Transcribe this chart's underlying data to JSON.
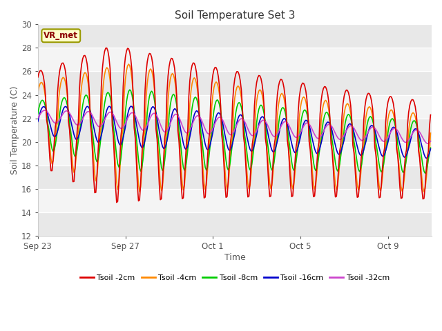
{
  "title": "Soil Temperature Set 3",
  "xlabel": "Time",
  "ylabel": "Soil Temperature (C)",
  "ylim": [
    12,
    30
  ],
  "yticks": [
    12,
    14,
    16,
    18,
    20,
    22,
    24,
    26,
    28,
    30
  ],
  "annotation": "VR_met",
  "colors": {
    "Tsoil -2cm": "#dd0000",
    "Tsoil -4cm": "#ff8800",
    "Tsoil -8cm": "#00cc00",
    "Tsoil -16cm": "#0000cc",
    "Tsoil -32cm": "#cc44cc"
  },
  "band_colors": [
    "#e8e8e8",
    "#f4f4f4"
  ],
  "background_color": "#ffffff",
  "x_tick_positions": [
    0,
    4,
    8,
    12,
    16
  ],
  "x_tick_labels": [
    "Sep 23",
    "Sep 27",
    "Oct 1",
    "Oct 5",
    "Oct 9"
  ],
  "legend_labels": [
    "Tsoil -2cm",
    "Tsoil -4cm",
    "Tsoil -8cm",
    "Tsoil -16cm",
    "Tsoil -32cm"
  ]
}
